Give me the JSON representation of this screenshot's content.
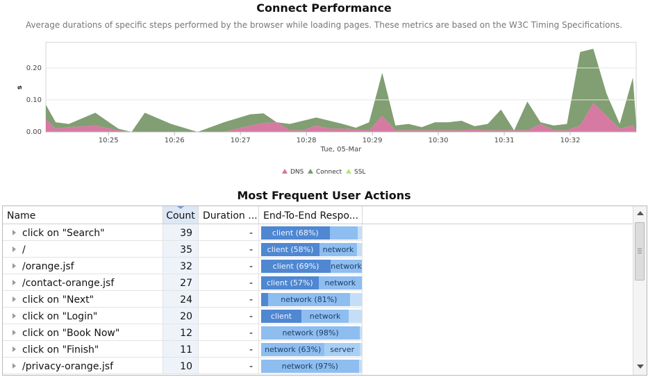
{
  "header": {
    "title": "Connect Performance",
    "subtitle": "Average durations of specific steps performed by the browser while loading pages. These metrics are based on the W3C Timing Specifications."
  },
  "chart_data": {
    "type": "area",
    "stacked": true,
    "title": "",
    "ylabel": "s",
    "xlabel": "Tue, 05-Mar",
    "ylim": [
      0,
      0.28
    ],
    "xlim": [
      "10:24:03",
      "10:33:00"
    ],
    "y_ticks": [
      "0.00",
      "0.10",
      "0.20"
    ],
    "x_ticks": [
      "10:25",
      "10:26",
      "10:27",
      "10:28",
      "10:29",
      "10:30",
      "10:31",
      "10:32"
    ],
    "grid": true,
    "legend_position": "bottom",
    "x": [
      "10:24:03",
      "10:24:12",
      "10:24:24",
      "10:24:48",
      "10:25:09",
      "10:25:21",
      "10:25:33",
      "10:25:57",
      "10:26:21",
      "10:26:45",
      "10:27:09",
      "10:27:21",
      "10:27:33",
      "10:27:45",
      "10:27:57",
      "10:28:09",
      "10:28:21",
      "10:28:33",
      "10:28:45",
      "10:28:57",
      "10:29:09",
      "10:29:21",
      "10:29:33",
      "10:29:45",
      "10:29:57",
      "10:30:09",
      "10:30:21",
      "10:30:33",
      "10:30:45",
      "10:30:57",
      "10:31:09",
      "10:31:21",
      "10:31:33",
      "10:31:45",
      "10:31:57",
      "10:32:09",
      "10:32:21",
      "10:32:33",
      "10:32:45",
      "10:32:57",
      "10:33:00"
    ],
    "series": [
      {
        "name": "DNS",
        "color": "#d4739e",
        "values": [
          0.04,
          0.01,
          0.015,
          0.02,
          0.005,
          0.0,
          0.0,
          0.0,
          0.0,
          0.0,
          0.02,
          0.028,
          0.03,
          0.005,
          0.005,
          0.02,
          0.01,
          0.01,
          0.008,
          0.005,
          0.05,
          0.005,
          0.005,
          0.005,
          0.005,
          0.005,
          0.005,
          0.008,
          0.005,
          0.005,
          0.005,
          0.005,
          0.025,
          0.005,
          0.005,
          0.02,
          0.09,
          0.05,
          0.01,
          0.02,
          0.005
        ]
      },
      {
        "name": "Connect",
        "color": "#7a9a6a",
        "values": [
          0.045,
          0.02,
          0.01,
          0.04,
          0.005,
          0.0,
          0.06,
          0.025,
          0.0,
          0.03,
          0.035,
          0.03,
          0.0,
          0.02,
          0.03,
          0.025,
          0.025,
          0.015,
          0.005,
          0.025,
          0.135,
          0.015,
          0.02,
          0.01,
          0.025,
          0.025,
          0.03,
          0.01,
          0.02,
          0.065,
          0.0,
          0.09,
          0.005,
          0.015,
          0.02,
          0.23,
          0.17,
          0.07,
          0.015,
          0.15,
          0.02
        ]
      },
      {
        "name": "SSL",
        "color": "#b9e27a",
        "values": [
          0,
          0,
          0,
          0,
          0,
          0,
          0,
          0,
          0,
          0,
          0,
          0,
          0,
          0,
          0,
          0,
          0,
          0,
          0,
          0,
          0,
          0,
          0,
          0,
          0,
          0,
          0,
          0,
          0,
          0,
          0,
          0,
          0,
          0,
          0,
          0,
          0,
          0,
          0,
          0,
          0
        ]
      }
    ]
  },
  "actions_section": {
    "title": "Most Frequent User Actions"
  },
  "table": {
    "columns": {
      "name": "Name",
      "count": "Count",
      "duration": "Duration ...",
      "e2e": "End-To-End Respo..."
    },
    "rows": [
      {
        "name": "click on \"Search\"",
        "count": "39",
        "duration": "-",
        "segments": [
          {
            "type": "client",
            "label": "client (68%)",
            "share": 0.68
          },
          {
            "type": "network",
            "label": "",
            "share": 0.28
          }
        ]
      },
      {
        "name": "/",
        "count": "35",
        "duration": "-",
        "segments": [
          {
            "type": "client",
            "label": "client (58%)",
            "share": 0.58
          },
          {
            "type": "network",
            "label": "network",
            "share": 0.37
          }
        ]
      },
      {
        "name": "/orange.jsf",
        "count": "32",
        "duration": "-",
        "segments": [
          {
            "type": "client",
            "label": "client (69%)",
            "share": 0.69
          },
          {
            "type": "network",
            "label": "network",
            "share": 0.31
          }
        ]
      },
      {
        "name": "/contact-orange.jsf",
        "count": "27",
        "duration": "-",
        "segments": [
          {
            "type": "client",
            "label": "client (57%)",
            "share": 0.57
          },
          {
            "type": "network",
            "label": "network",
            "share": 0.43
          }
        ]
      },
      {
        "name": "click on \"Next\"",
        "count": "24",
        "duration": "-",
        "segments": [
          {
            "type": "client",
            "label": "",
            "share": 0.07
          },
          {
            "type": "network",
            "label": "network (81%)",
            "share": 0.81
          }
        ]
      },
      {
        "name": "click on \"Login\"",
        "count": "20",
        "duration": "-",
        "segments": [
          {
            "type": "client",
            "label": "client",
            "share": 0.4
          },
          {
            "type": "network",
            "label": "network",
            "share": 0.47
          }
        ]
      },
      {
        "name": "click on \"Book Now\"",
        "count": "12",
        "duration": "-",
        "segments": [
          {
            "type": "network",
            "label": "network (98%)",
            "share": 0.98
          }
        ]
      },
      {
        "name": "click on \"Finish\"",
        "count": "11",
        "duration": "-",
        "segments": [
          {
            "type": "network",
            "label": "network (63%)",
            "share": 0.63
          },
          {
            "type": "server",
            "label": "server",
            "share": 0.35
          }
        ]
      },
      {
        "name": "/privacy-orange.jsf",
        "count": "10",
        "duration": "-",
        "segments": [
          {
            "type": "network",
            "label": "network (97%)",
            "share": 0.97
          }
        ]
      }
    ]
  },
  "icons": {
    "expander": "expand-triangle-icon",
    "sort": "sort-descending-icon",
    "scroll_up": "scroll-up-arrow-icon",
    "scroll_down": "scroll-down-arrow-icon"
  },
  "colors": {
    "client": "#4f87d1",
    "network": "#8ebdf0",
    "server": "#a9cff5",
    "count_column_bg": "#eef3fa"
  }
}
